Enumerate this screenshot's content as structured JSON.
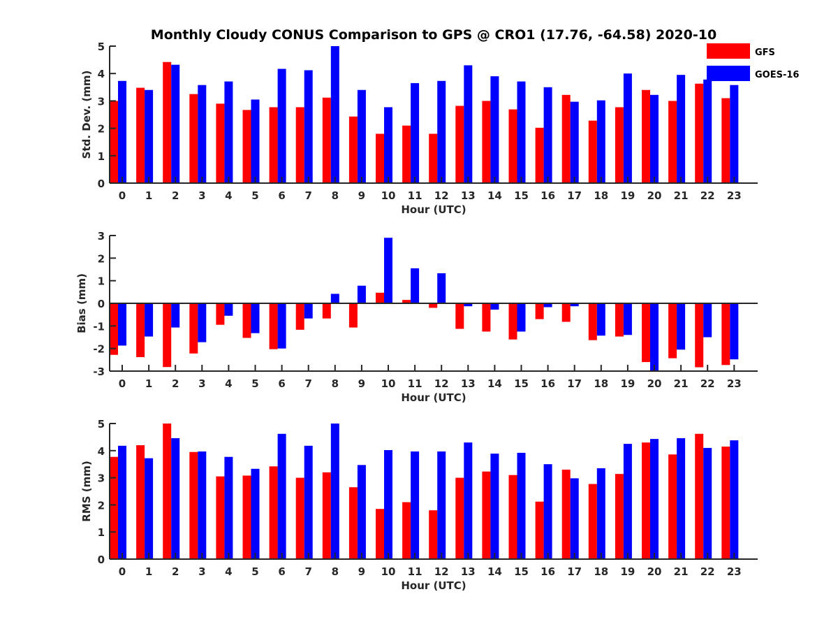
{
  "chart_data": [
    {
      "type": "bar",
      "title": "Monthly Cloudy CONUS Comparison to GPS @ CRO1 (17.76, -64.58) 2020-10",
      "xlabel": "Hour (UTC)",
      "ylabel": "Std. Dev. (mm)",
      "ylim": [
        0,
        5
      ],
      "yticks": [
        "0",
        "1",
        "2",
        "3",
        "4",
        "5"
      ],
      "categories": [
        "0",
        "1",
        "2",
        "3",
        "4",
        "5",
        "6",
        "7",
        "8",
        "9",
        "10",
        "11",
        "12",
        "13",
        "14",
        "15",
        "16",
        "17",
        "18",
        "19",
        "20",
        "21",
        "22",
        "23"
      ],
      "series": [
        {
          "name": "GFS",
          "color": "#ff0000",
          "values": [
            3.0,
            3.48,
            4.42,
            3.25,
            2.9,
            2.67,
            2.77,
            2.77,
            3.12,
            2.43,
            1.8,
            2.1,
            1.8,
            2.82,
            3.0,
            2.69,
            2.02,
            3.22,
            2.28,
            2.77,
            3.4,
            3.0,
            3.63,
            3.1
          ]
        },
        {
          "name": "GOES-16",
          "color": "#0000ff",
          "values": [
            3.73,
            3.4,
            4.32,
            3.58,
            3.71,
            3.05,
            4.17,
            4.12,
            5.0,
            3.4,
            2.77,
            3.65,
            3.73,
            4.3,
            3.9,
            3.71,
            3.5,
            2.97,
            3.02,
            4.0,
            3.22,
            3.95,
            3.78,
            3.58
          ]
        }
      ],
      "legend": {
        "placement": "top-right",
        "entries": [
          "GFS",
          "GOES-16"
        ]
      },
      "grid": false
    },
    {
      "type": "bar",
      "xlabel": "Hour (UTC)",
      "ylabel": "Bias (mm)",
      "ylim": [
        -3,
        3
      ],
      "yticks": [
        "-3",
        "-2",
        "-1",
        "0",
        "1",
        "2",
        "3"
      ],
      "categories": [
        "0",
        "1",
        "2",
        "3",
        "4",
        "5",
        "6",
        "7",
        "8",
        "9",
        "10",
        "11",
        "12",
        "13",
        "14",
        "15",
        "16",
        "17",
        "18",
        "19",
        "20",
        "21",
        "22",
        "23"
      ],
      "series": [
        {
          "name": "GFS",
          "color": "#ff0000",
          "values": [
            -2.28,
            -2.38,
            -2.82,
            -2.22,
            -0.95,
            -1.53,
            -2.03,
            -1.17,
            -0.67,
            -1.07,
            0.47,
            0.15,
            -0.2,
            -1.13,
            -1.25,
            -1.6,
            -0.7,
            -0.82,
            -1.63,
            -1.47,
            -2.6,
            -2.43,
            -2.83,
            -2.73
          ]
        },
        {
          "name": "GOES-16",
          "color": "#0000ff",
          "values": [
            -1.87,
            -1.47,
            -1.07,
            -1.72,
            -0.55,
            -1.32,
            -2.0,
            -0.67,
            0.42,
            0.78,
            2.9,
            1.55,
            1.33,
            -0.13,
            -0.28,
            -1.25,
            -0.17,
            -0.13,
            -1.43,
            -1.4,
            -3.0,
            -2.05,
            -1.5,
            -2.48
          ]
        }
      ],
      "grid": false
    },
    {
      "type": "bar",
      "xlabel": "Hour (UTC)",
      "ylabel": "RMS (mm)",
      "ylim": [
        0,
        5
      ],
      "yticks": [
        "0",
        "1",
        "2",
        "3",
        "4",
        "5"
      ],
      "categories": [
        "0",
        "1",
        "2",
        "3",
        "4",
        "5",
        "6",
        "7",
        "8",
        "9",
        "10",
        "11",
        "12",
        "13",
        "14",
        "15",
        "16",
        "17",
        "18",
        "19",
        "20",
        "21",
        "22",
        "23"
      ],
      "series": [
        {
          "name": "GFS",
          "color": "#ff0000",
          "values": [
            3.77,
            4.2,
            5.0,
            3.95,
            3.05,
            3.08,
            3.42,
            3.0,
            3.2,
            2.65,
            1.85,
            2.1,
            1.8,
            3.0,
            3.23,
            3.1,
            2.12,
            3.3,
            2.77,
            3.14,
            4.3,
            3.86,
            4.62,
            4.15
          ]
        },
        {
          "name": "GOES-16",
          "color": "#0000ff",
          "values": [
            4.18,
            3.72,
            4.46,
            3.97,
            3.77,
            3.33,
            4.62,
            4.18,
            5.0,
            3.47,
            4.02,
            3.97,
            3.97,
            4.3,
            3.89,
            3.92,
            3.5,
            2.98,
            3.35,
            4.25,
            4.43,
            4.46,
            4.1,
            4.38
          ]
        }
      ],
      "grid": false
    }
  ]
}
